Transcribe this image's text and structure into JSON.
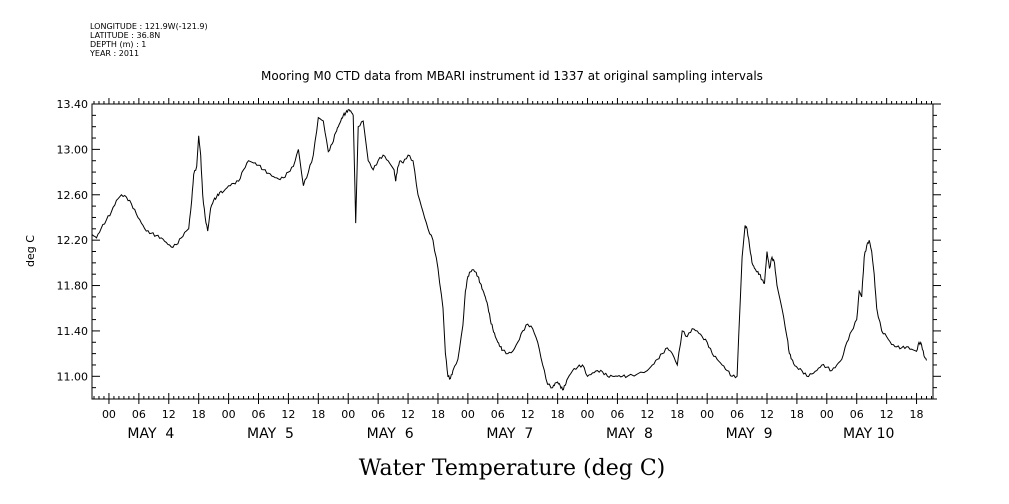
{
  "metadata": {
    "longitude": "LONGITUDE : 121.9W(-121.9)",
    "latitude": "LATITUDE : 36.8N",
    "depth": "DEPTH (m) : 1",
    "year": "YEAR : 2011"
  },
  "chart_data": {
    "type": "line",
    "title": "Mooring M0 CTD data from MBARI instrument id 1337 at original sampling intervals",
    "bottom_title": "Water Temperature (deg C)",
    "ylabel": "deg C",
    "ylim": [
      10.8,
      13.4
    ],
    "yticks": [
      11.0,
      11.4,
      11.8,
      12.2,
      12.6,
      13.0,
      13.4
    ],
    "ytick_labels": [
      "11.00",
      "11.40",
      "11.80",
      "12.20",
      "12.60",
      "13.00",
      "13.40"
    ],
    "xlim_hours": [
      -3.4,
      165.3
    ],
    "x_hour_ticks": [
      0,
      6,
      12,
      18,
      24,
      30,
      36,
      42,
      48,
      54,
      60,
      66,
      72,
      78,
      84,
      90,
      96,
      102,
      108,
      114,
      120,
      126,
      132,
      138,
      144,
      150,
      156,
      162
    ],
    "x_hour_labels": [
      "00",
      "06",
      "12",
      "18",
      "00",
      "06",
      "12",
      "18",
      "00",
      "06",
      "12",
      "18",
      "00",
      "06",
      "12",
      "18",
      "00",
      "06",
      "12",
      "18",
      "00",
      "06",
      "12",
      "18",
      "00",
      "06",
      "12",
      "18"
    ],
    "day_labels": [
      {
        "label": "MAY  4",
        "hour": 6
      },
      {
        "label": "MAY  5",
        "hour": 30
      },
      {
        "label": "MAY  6",
        "hour": 54
      },
      {
        "label": "MAY  7",
        "hour": 78
      },
      {
        "label": "MAY  8",
        "hour": 102
      },
      {
        "label": "MAY  9",
        "hour": 126
      },
      {
        "label": "MAY 10",
        "hour": 150
      }
    ],
    "series": [
      {
        "color": "#000000",
        "x": [
          -3.4,
          -2.5,
          -1.6,
          -0.5,
          0.5,
          1.5,
          2.5,
          3.5,
          4.5,
          5.5,
          6.5,
          7.5,
          8.5,
          9.5,
          10.5,
          11.5,
          12.5,
          13.5,
          14.5,
          15.5,
          16.0,
          16.6,
          17.0,
          17.6,
          18.0,
          18.4,
          18.8,
          19.3,
          19.8,
          20.4,
          21.0,
          21.6,
          22.2,
          23.0,
          24.0,
          25.0,
          26.0,
          27.0,
          28.0,
          29.0,
          30.0,
          31.0,
          32.0,
          33.0,
          34.0,
          35.0,
          36.0,
          37.0,
          38.0,
          39.0,
          40.0,
          41.0,
          42.0,
          43.0,
          44.0,
          44.8,
          45.5,
          46.0,
          46.5,
          47.0,
          47.5,
          48.0,
          48.5,
          49.0,
          49.5,
          50.0,
          51.0,
          52.0,
          53.0,
          54.0,
          55.0,
          56.0,
          57.2,
          57.5,
          57.7,
          58.0,
          58.4,
          59.0,
          60.0,
          61.0,
          62.0,
          63.0,
          64.0,
          65.0,
          66.0,
          67.0,
          67.5,
          68.0,
          68.5,
          69.0,
          70.0,
          71.0,
          71.5,
          72.0,
          72.5,
          73.0,
          73.5,
          74.0,
          74.5,
          75.0,
          75.5,
          76.0,
          76.5,
          77.0,
          77.5,
          78.0,
          78.5,
          79.0,
          80.0,
          81.0,
          82.0,
          83.0,
          84.0,
          85.0,
          86.0,
          87.0,
          88.0,
          89.0,
          89.5,
          90.0,
          90.5,
          91.0,
          91.5,
          92.0,
          93.0,
          94.0,
          95.0,
          96.0,
          97.0,
          98.0,
          99.0,
          100.0,
          101.0,
          102.0,
          103.0,
          104.0,
          106.0,
          108.0,
          109.0,
          110.0,
          111.0,
          112.0,
          113.0,
          114.0,
          115.0,
          116.0,
          117.0,
          118.0,
          119.0,
          120.0,
          121.0,
          122.0,
          123.0,
          124.0,
          125.0,
          126.0,
          127.0,
          127.6,
          128.0,
          128.5,
          129.0,
          129.5,
          130.0,
          130.5,
          131.0,
          131.5,
          132.0,
          132.5,
          133.0,
          133.5,
          134.0,
          135.0,
          136.0,
          136.5,
          137.0,
          137.5,
          138.0,
          139.0,
          140.0,
          141.0,
          142.0,
          143.0,
          144.0,
          145.0,
          146.0,
          147.0,
          148.0,
          149.0,
          150.0,
          150.5,
          151.0,
          151.5,
          152.0,
          152.5,
          153.0,
          153.5,
          154.0,
          155.0,
          156.0,
          157.0,
          158.0,
          159.0,
          160.0,
          161.0,
          162.0,
          162.5,
          163.0,
          163.5,
          164.0
        ],
        "y": [
          12.25,
          12.22,
          12.3,
          12.38,
          12.45,
          12.55,
          12.6,
          12.58,
          12.52,
          12.43,
          12.35,
          12.28,
          12.26,
          12.24,
          12.22,
          12.18,
          12.14,
          12.16,
          12.22,
          12.28,
          12.3,
          12.55,
          12.78,
          12.85,
          13.12,
          12.95,
          12.6,
          12.4,
          12.28,
          12.48,
          12.55,
          12.58,
          12.62,
          12.63,
          12.68,
          12.7,
          12.72,
          12.82,
          12.9,
          12.88,
          12.86,
          12.82,
          12.79,
          12.76,
          12.74,
          12.75,
          12.8,
          12.85,
          13.0,
          12.68,
          12.8,
          12.95,
          13.28,
          13.25,
          12.98,
          13.05,
          13.15,
          13.2,
          13.25,
          13.3,
          13.32,
          13.35,
          13.34,
          13.3,
          12.35,
          13.2,
          13.25,
          12.9,
          12.82,
          12.9,
          12.95,
          12.9,
          12.82,
          12.72,
          12.78,
          12.85,
          12.9,
          12.88,
          12.95,
          12.9,
          12.6,
          12.45,
          12.3,
          12.2,
          11.95,
          11.6,
          11.2,
          11.0,
          10.98,
          11.05,
          11.15,
          11.45,
          11.75,
          11.88,
          11.92,
          11.94,
          11.92,
          11.88,
          11.82,
          11.76,
          11.7,
          11.62,
          11.5,
          11.42,
          11.35,
          11.3,
          11.26,
          11.23,
          11.2,
          11.22,
          11.3,
          11.4,
          11.46,
          11.42,
          11.3,
          11.1,
          10.93,
          10.9,
          10.94,
          10.95,
          10.92,
          10.88,
          10.92,
          10.98,
          11.05,
          11.08,
          11.1,
          11.0,
          11.03,
          11.05,
          11.04,
          11.0,
          11.0,
          11.0,
          11.0,
          11.0,
          11.02,
          11.05,
          11.1,
          11.15,
          11.2,
          11.25,
          11.2,
          11.1,
          11.4,
          11.35,
          11.42,
          11.4,
          11.35,
          11.3,
          11.2,
          11.15,
          11.1,
          11.05,
          11.0,
          11.0,
          12.05,
          12.33,
          12.3,
          12.15,
          12.0,
          11.95,
          11.92,
          11.9,
          11.85,
          11.82,
          12.1,
          11.95,
          12.05,
          12.0,
          11.8,
          11.6,
          11.35,
          11.2,
          11.15,
          11.1,
          11.08,
          11.05,
          11.0,
          11.02,
          11.05,
          11.1,
          11.08,
          11.05,
          11.1,
          11.15,
          11.3,
          11.4,
          11.5,
          11.75,
          11.7,
          12.05,
          12.15,
          12.2,
          12.1,
          11.9,
          11.6,
          11.4,
          11.35,
          11.28,
          11.26,
          11.25,
          11.26,
          11.24,
          11.22,
          11.3,
          11.28,
          11.18,
          11.14
        ]
      }
    ]
  }
}
